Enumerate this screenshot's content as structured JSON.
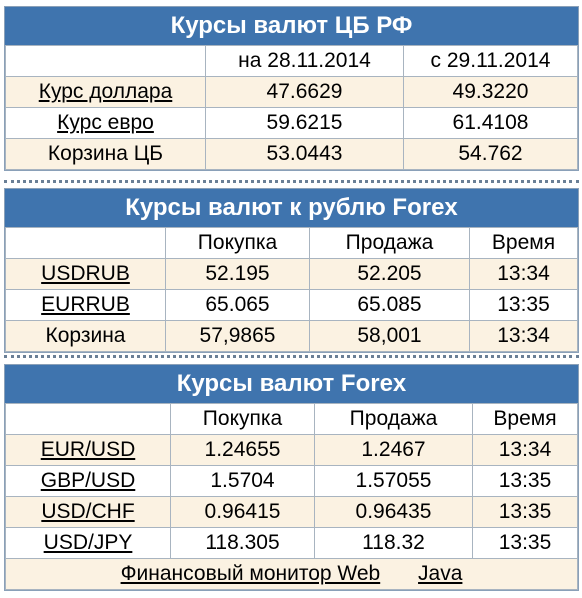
{
  "cb": {
    "title": "Курсы валют ЦБ РФ",
    "col1": "на 28.11.2014",
    "col2": "с 29.11.2014",
    "rows": [
      {
        "label": "Курс доллара",
        "v1": "47.6629",
        "v2": "49.3220"
      },
      {
        "label": "Курс евро",
        "v1": "59.6215",
        "v2": "61.4108"
      },
      {
        "label": "Корзина ЦБ",
        "v1": "53.0443",
        "v2": "54.762"
      }
    ]
  },
  "rub": {
    "title": "Курсы валют к рублю Forex",
    "col1": "Покупка",
    "col2": "Продажа",
    "col3": "Время",
    "rows": [
      {
        "label": "USDRUB",
        "buy": "52.195",
        "sell": "52.205",
        "time": "13:34"
      },
      {
        "label": "EURRUB",
        "buy": "65.065",
        "sell": "65.085",
        "time": "13:35"
      },
      {
        "label": "Корзина",
        "buy": "57,9865",
        "sell": "58,001",
        "time": "13:34"
      }
    ]
  },
  "fx": {
    "title": "Курсы валют Forex",
    "col1": "Покупка",
    "col2": "Продажа",
    "col3": "Время",
    "rows": [
      {
        "label": "EUR/USD",
        "buy": "1.24655",
        "sell": "1.2467",
        "time": "13:34"
      },
      {
        "label": "GBP/USD",
        "buy": "1.5704",
        "sell": "1.57055",
        "time": "13:35"
      },
      {
        "label": "USD/CHF",
        "buy": "0.96415",
        "sell": "0.96435",
        "time": "13:35"
      },
      {
        "label": "USD/JPY",
        "buy": "118.305",
        "sell": "118.32",
        "time": "13:35"
      }
    ]
  },
  "footer": {
    "link1": "Финансовый монитор Web",
    "link2": "Java"
  },
  "colors": {
    "header_bg": "#3f74ae",
    "row_alt_bg": "#fbf2e2",
    "border": "#a8b4c0"
  }
}
